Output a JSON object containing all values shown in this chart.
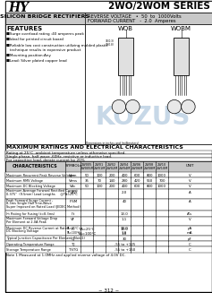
{
  "title": "2WO/2WOM SERIES",
  "logo_text": "HY",
  "header_left": "SILICON BRIDGE RECTIFIERS",
  "header_right1": "REVERSE VOLTAGE   •  50  to  1000Volts",
  "header_right2": "FORWARD CURRENT   -  2.0  Amperes",
  "features_title": "FEATURES",
  "features": [
    "■Surge overload rating :40 amperes peak",
    "■Ideal for printed circuit board",
    "■Reliable low cost construction utilizing molded plastic",
    "   technique results in expensive product",
    "■Mounting position:Any",
    "■Lead: Silver plated copper lead"
  ],
  "wob_label": "WOB",
  "wobm_label": "WOBM",
  "section_title": "MAXIMUM RATINGS AND ELECTRICAL CHARACTERISTICS",
  "rating_note1": "Rating at 25°C  ambient temperature unless otherwise specified.",
  "rating_note2": "Single phase, half wave ,60Hz, resistive or inductive load.",
  "rating_note3": "For capacitive load, derate current by 20%",
  "col_headers_top": [
    "2W005",
    "2W01",
    "2W02",
    "2W04",
    "2W06",
    "2W08",
    "2W10"
  ],
  "col_headers_bot": [
    "2W005M",
    "2W01M",
    "2W02M",
    "2W04M",
    "2W06M",
    "2W08M",
    "2W10M"
  ],
  "char_rows": [
    [
      "Maximum Recurrent Peak Reverse Voltage",
      "Vrrm",
      "50",
      "100",
      "200",
      "400",
      "600",
      "800",
      "1000",
      "V"
    ],
    [
      "Maximum RMS Voltage",
      "Vrms",
      "35",
      "70",
      "140",
      "280",
      "420",
      "560",
      "700",
      "V"
    ],
    [
      "Maximum DC Blocking Voltage",
      "Vdc",
      "50",
      "100",
      "200",
      "400",
      "600",
      "800",
      "1000",
      "V"
    ],
    [
      "Maximum Average Forward Rectified Current\n0.375''  (9.5mm) Lead Lengths     @TA=25°C",
      "IF(AV)",
      "",
      "",
      "",
      "2.0",
      "",
      "",
      "",
      "A"
    ],
    [
      "Peak Forward Surge Current ,\n8.3ms Single Half Sine-Wave\nSuper Imposed on Rated Load (JEDEC Method)",
      "IFSM",
      "",
      "",
      "",
      "40",
      "",
      "",
      "",
      "A"
    ],
    [
      "I²t Rating for Fusing (t=8.3ms)",
      "I²t",
      "",
      "",
      "",
      "13.0",
      "",
      "",
      "",
      "A²s"
    ],
    [
      "Maximum Forward Voltage Drop\nPer Element at 2.0A Peak",
      "VF",
      "",
      "",
      "",
      "1.1",
      "",
      "",
      "",
      "V"
    ],
    [
      "Maximum DC Reverse Current at Rated\nDC Blocking Voltage",
      "IR",
      "TA=25°C\nTA=100°C",
      "",
      "",
      "10.0\n1.0",
      "",
      "",
      "",
      "μA\nmA"
    ],
    [
      "Typical Junction Capacitance Per Element (Note1)",
      "CJ",
      "",
      "",
      "",
      "30",
      "",
      "",
      "",
      "pF"
    ],
    [
      "Operating Temperature Range",
      "TJ",
      "",
      "",
      "",
      "-55 to +125",
      "",
      "",
      "",
      "C"
    ],
    [
      "Storage Temperature Range",
      "TSTG",
      "",
      "",
      "",
      "-55 to +150",
      "",
      "",
      "",
      "C"
    ]
  ],
  "note": "Note 1 Measured at 1.0MHz and applied reverse voltage of 4.0V DC.",
  "page_num": "~ 312 ~",
  "watermark": "KOZUS",
  "bg_color": "#ffffff",
  "gray_bg": "#c8c8c8",
  "border_color": "#000000"
}
